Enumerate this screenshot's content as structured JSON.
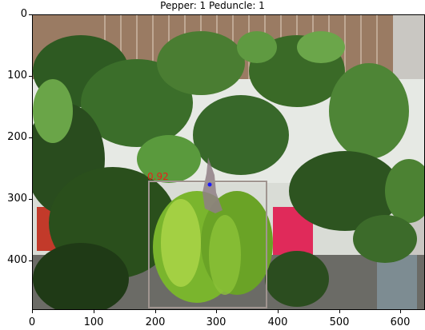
{
  "title": "Pepper: 1 Peduncle: 1",
  "detection": {
    "label_score": "0.92",
    "box_color": "#a09590",
    "score_color": "#e8201a",
    "peduncle_point_color": "#1a1aff"
  },
  "axes": {
    "xticks": [
      "0",
      "100",
      "200",
      "300",
      "400",
      "500",
      "600"
    ],
    "yticks": [
      "0",
      "100",
      "200",
      "300",
      "400"
    ]
  }
}
